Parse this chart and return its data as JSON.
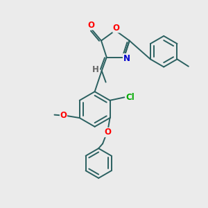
{
  "background_color": "#ebebeb",
  "atom_colors": {
    "O": "#ff0000",
    "N": "#0000cd",
    "Cl": "#00aa00",
    "C": "#2a2a2a",
    "H": "#666666"
  },
  "bond_color": "#2a6060",
  "bond_width": 1.4,
  "font_size_atom": 8.5,
  "dbl_sep": 0.08
}
